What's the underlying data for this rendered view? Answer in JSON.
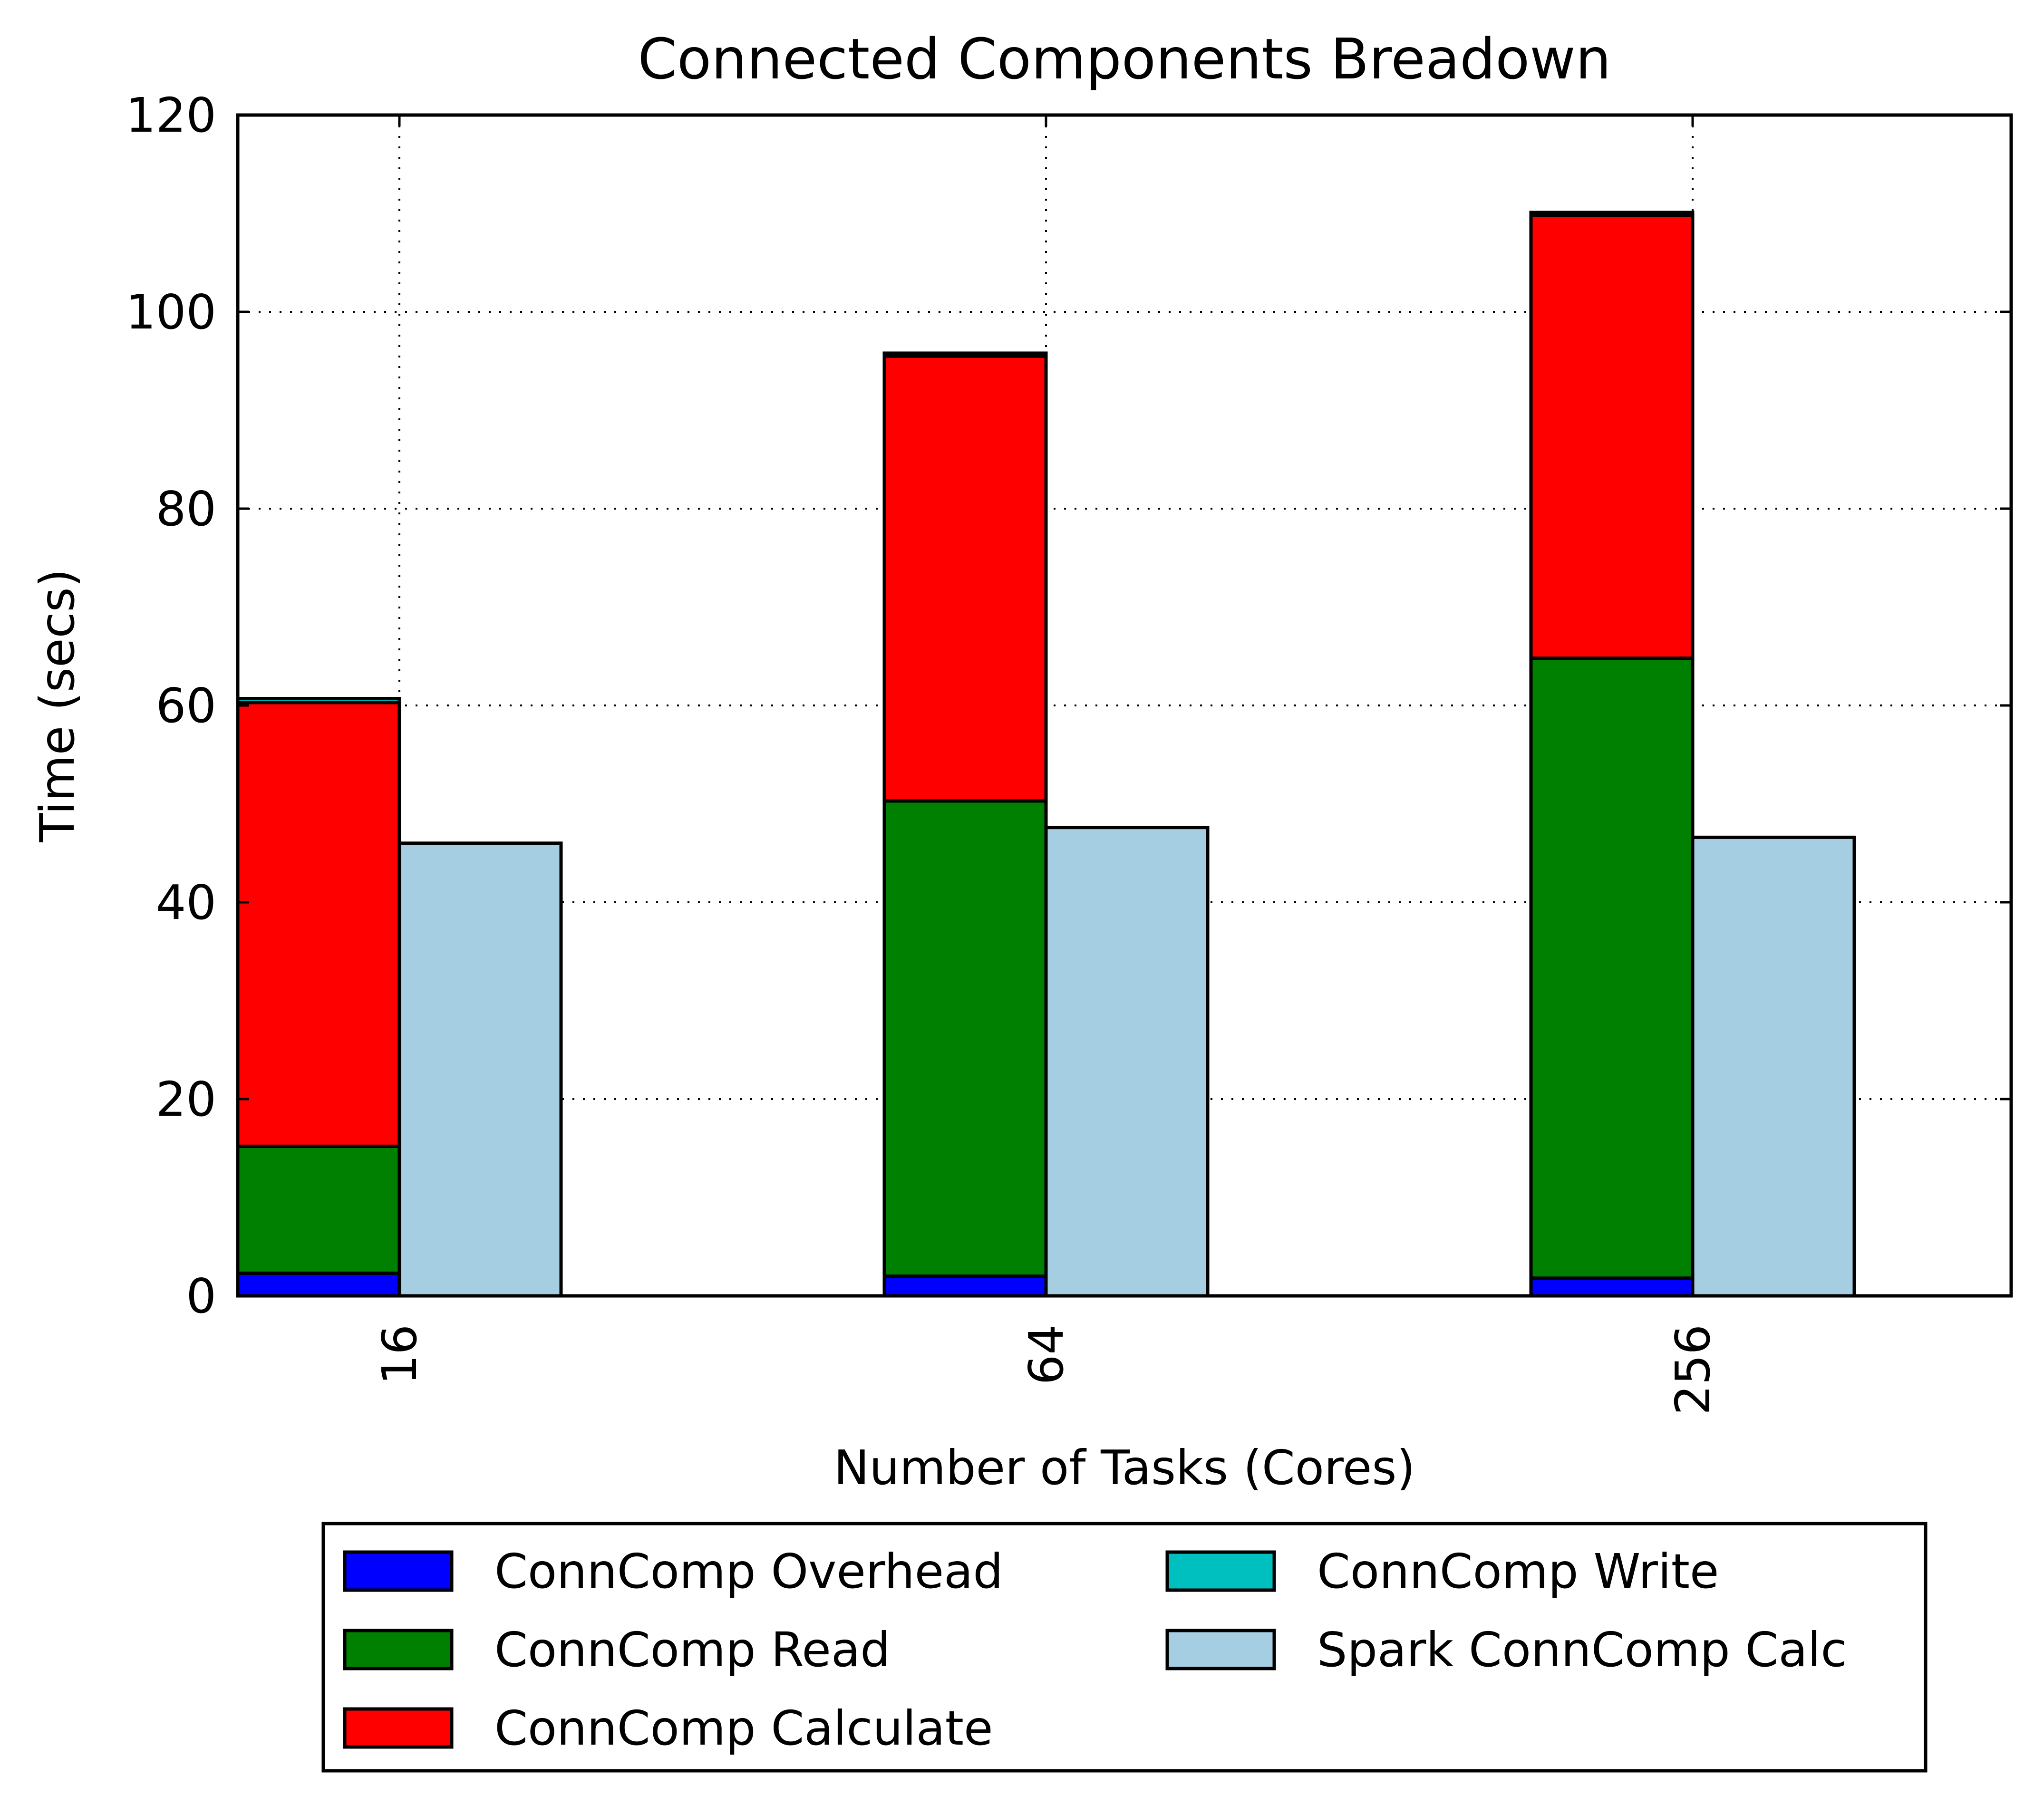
{
  "chart_data": {
    "type": "bar",
    "title": "Connected Components Breadown",
    "xlabel": "Number of Tasks (Cores)",
    "ylabel": "Time (secs)",
    "categories": [
      "16",
      "64",
      "256"
    ],
    "ylim": [
      0,
      120
    ],
    "yticks": [
      "0",
      "20",
      "40",
      "60",
      "80",
      "100",
      "120"
    ],
    "grid": true,
    "legend_position": "bottom-center",
    "stacked_series": [
      {
        "name": "ConnComp Overhead",
        "color": "#0000ff",
        "values": [
          2.3,
          2.0,
          1.8
        ]
      },
      {
        "name": "ConnComp Read",
        "color": "#008000",
        "values": [
          12.9,
          48.3,
          63.0
        ]
      },
      {
        "name": "ConnComp Calculate",
        "color": "#ff0000",
        "values": [
          45.1,
          45.2,
          45.0
        ]
      },
      {
        "name": "ConnComp Write",
        "color": "#00bfbf",
        "values": [
          0.4,
          0.3,
          0.3
        ]
      }
    ],
    "side_series": [
      {
        "name": "Spark ConnComp Calc",
        "color": "#a6cee3",
        "values": [
          46.0,
          47.6,
          46.6
        ]
      }
    ],
    "legend_order": [
      "ConnComp Overhead",
      "ConnComp Read",
      "ConnComp Calculate",
      "ConnComp Write",
      "Spark ConnComp Calc"
    ]
  }
}
